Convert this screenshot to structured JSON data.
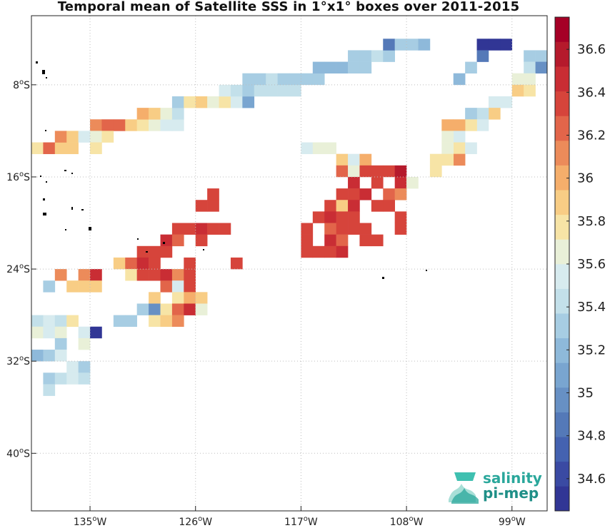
{
  "title": "Temporal mean of Satellite SSS in 1°x1° boxes over 2011-2015",
  "logo": {
    "line1": "salinity",
    "line2": "pi-mep",
    "colors": [
      "#3fc0b0",
      "#2aa79b",
      "#1f8f87"
    ]
  },
  "chart_data": {
    "type": "heatmap",
    "title": "Temporal mean of Satellite SSS in 1°x1° boxes over 2011-2015",
    "x_unit": "degrees longitude",
    "y_unit": "degrees latitude",
    "xlim": [
      -140,
      -96
    ],
    "ylim": [
      -45,
      -2
    ],
    "x_ticks": [
      {
        "value": -135,
        "label": "135°W"
      },
      {
        "value": -126,
        "label": "126°W"
      },
      {
        "value": -117,
        "label": "117°W"
      },
      {
        "value": -108,
        "label": "108°W"
      },
      {
        "value": -99,
        "label": "99°W"
      }
    ],
    "y_ticks": [
      {
        "value": -8,
        "label": "8°S"
      },
      {
        "value": -16,
        "label": "16°S"
      },
      {
        "value": -24,
        "label": "24°S"
      },
      {
        "value": -32,
        "label": "32°S"
      },
      {
        "value": -40,
        "label": "40°S"
      }
    ],
    "grid": true,
    "colorbar": {
      "min": 34.45,
      "max": 36.75,
      "ticks": [
        34.6,
        34.8,
        35.0,
        35.2,
        35.4,
        35.6,
        35.8,
        36.0,
        36.2,
        36.4,
        36.6
      ],
      "tick_labels": [
        "34.6",
        "34.8",
        "35",
        "35.2",
        "35.4",
        "35.6",
        "35.8",
        "36",
        "36.2",
        "36.4",
        "36.6"
      ],
      "colors": [
        "#313695",
        "#3a4aa3",
        "#4462b0",
        "#5479b8",
        "#6790c4",
        "#79a5d0",
        "#8eb9da",
        "#a7cde3",
        "#c3e0ea",
        "#d7ebef",
        "#e9f0d8",
        "#f7e4a6",
        "#f8cd85",
        "#f5ae6b",
        "#ec8b5a",
        "#e2654a",
        "#d6443b",
        "#c92d34",
        "#b51a2c",
        "#a50026"
      ]
    },
    "cells": [
      {
        "lon": -134.5,
        "lat": -11.5,
        "v": 36.1
      },
      {
        "lon": -133.5,
        "lat": -11.5,
        "v": 36.2
      },
      {
        "lon": -132.5,
        "lat": -11.5,
        "v": 36.2
      },
      {
        "lon": -131.5,
        "lat": -11.5,
        "v": 35.85
      },
      {
        "lon": -130.5,
        "lat": -11.5,
        "v": 35.75
      },
      {
        "lon": -129.5,
        "lat": -11.5,
        "v": 35.6
      },
      {
        "lon": -128.5,
        "lat": -11.5,
        "v": 35.55
      },
      {
        "lon": -127.5,
        "lat": -11.5,
        "v": 35.5
      },
      {
        "lon": -130.5,
        "lat": -10.5,
        "v": 36.0
      },
      {
        "lon": -129.5,
        "lat": -10.5,
        "v": 35.85
      },
      {
        "lon": -128.5,
        "lat": -10.5,
        "v": 35.6
      },
      {
        "lon": -127.5,
        "lat": -10.5,
        "v": 35.45
      },
      {
        "lon": -127.5,
        "lat": -9.5,
        "v": 35.3
      },
      {
        "lon": -126.5,
        "lat": -9.5,
        "v": 35.8
      },
      {
        "lon": -125.5,
        "lat": -9.5,
        "v": 35.85
      },
      {
        "lon": -124.5,
        "lat": -9.5,
        "v": 35.7
      },
      {
        "lon": -123.5,
        "lat": -9.5,
        "v": 35.75
      },
      {
        "lon": -122.5,
        "lat": -9.5,
        "v": 35.5
      },
      {
        "lon": -121.5,
        "lat": -9.5,
        "v": 35.1
      },
      {
        "lon": -123.5,
        "lat": -8.5,
        "v": 35.55
      },
      {
        "lon": -122.5,
        "lat": -8.5,
        "v": 35.45
      },
      {
        "lon": -121.5,
        "lat": -8.5,
        "v": 35.3
      },
      {
        "lon": -120.5,
        "lat": -8.5,
        "v": 35.4
      },
      {
        "lon": -119.5,
        "lat": -8.5,
        "v": 35.45
      },
      {
        "lon": -118.5,
        "lat": -8.5,
        "v": 35.45
      },
      {
        "lon": -117.5,
        "lat": -8.5,
        "v": 35.45
      },
      {
        "lon": -121.5,
        "lat": -7.5,
        "v": 35.35
      },
      {
        "lon": -120.5,
        "lat": -7.5,
        "v": 35.3
      },
      {
        "lon": -119.5,
        "lat": -7.5,
        "v": 35.4
      },
      {
        "lon": -118.5,
        "lat": -7.5,
        "v": 35.35
      },
      {
        "lon": -117.5,
        "lat": -7.5,
        "v": 35.3
      },
      {
        "lon": -116.5,
        "lat": -7.5,
        "v": 35.35
      },
      {
        "lon": -115.5,
        "lat": -7.5,
        "v": 35.3
      },
      {
        "lon": -115.5,
        "lat": -6.5,
        "v": 35.2
      },
      {
        "lon": -114.5,
        "lat": -6.5,
        "v": 35.25
      },
      {
        "lon": -113.5,
        "lat": -6.5,
        "v": 35.25
      },
      {
        "lon": -112.5,
        "lat": -6.5,
        "v": 35.3
      },
      {
        "lon": -111.5,
        "lat": -6.5,
        "v": 35.3
      },
      {
        "lon": -112.5,
        "lat": -5.5,
        "v": 35.35
      },
      {
        "lon": -111.5,
        "lat": -5.5,
        "v": 35.3
      },
      {
        "lon": -110.5,
        "lat": -5.5,
        "v": 35.4
      },
      {
        "lon": -109.5,
        "lat": -5.5,
        "v": 35.35
      },
      {
        "lon": -109.5,
        "lat": -4.5,
        "v": 34.8
      },
      {
        "lon": -108.5,
        "lat": -4.5,
        "v": 35.3
      },
      {
        "lon": -107.5,
        "lat": -4.5,
        "v": 35.35
      },
      {
        "lon": -106.5,
        "lat": -4.5,
        "v": 35.25
      },
      {
        "lon": -101.5,
        "lat": -4.5,
        "v": 34.55
      },
      {
        "lon": -100.5,
        "lat": -4.5,
        "v": 34.55
      },
      {
        "lon": -99.5,
        "lat": -4.5,
        "v": 34.5
      },
      {
        "lon": -101.5,
        "lat": -5.5,
        "v": 34.8
      },
      {
        "lon": -102.5,
        "lat": -6.5,
        "v": 35.3
      },
      {
        "lon": -103.5,
        "lat": -7.5,
        "v": 35.25
      },
      {
        "lon": -97.5,
        "lat": -5.5,
        "v": 35.3
      },
      {
        "lon": -96.5,
        "lat": -5.5,
        "v": 35.3
      },
      {
        "lon": -97.5,
        "lat": -6.5,
        "v": 35.4
      },
      {
        "lon": -96.5,
        "lat": -6.5,
        "v": 34.95
      },
      {
        "lon": -98.5,
        "lat": -7.5,
        "v": 35.7
      },
      {
        "lon": -97.5,
        "lat": -7.5,
        "v": 35.7
      },
      {
        "lon": -98.5,
        "lat": -8.5,
        "v": 35.85
      },
      {
        "lon": -97.5,
        "lat": -8.5,
        "v": 35.8
      },
      {
        "lon": -99.5,
        "lat": -9.5,
        "v": 35.55
      },
      {
        "lon": -100.5,
        "lat": -9.5,
        "v": 35.55
      },
      {
        "lon": -100.5,
        "lat": -10.5,
        "v": 35.85
      },
      {
        "lon": -101.5,
        "lat": -10.5,
        "v": 35.4
      },
      {
        "lon": -102.5,
        "lat": -10.5,
        "v": 35.3
      },
      {
        "lon": -101.5,
        "lat": -11.5,
        "v": 35.5
      },
      {
        "lon": -102.5,
        "lat": -11.5,
        "v": 35.8
      },
      {
        "lon": -103.5,
        "lat": -11.5,
        "v": 36.0
      },
      {
        "lon": -104.5,
        "lat": -11.5,
        "v": 36.05
      },
      {
        "lon": -103.5,
        "lat": -12.5,
        "v": 35.5
      },
      {
        "lon": -104.5,
        "lat": -12.5,
        "v": 35.7
      },
      {
        "lon": -103.5,
        "lat": -13.5,
        "v": 35.8
      },
      {
        "lon": -102.5,
        "lat": -13.5,
        "v": 35.55
      },
      {
        "lon": -104.5,
        "lat": -13.5,
        "v": 35.7
      },
      {
        "lon": -103.5,
        "lat": -14.5,
        "v": 36.1
      },
      {
        "lon": -104.5,
        "lat": -14.5,
        "v": 35.8
      },
      {
        "lon": -105.5,
        "lat": -14.5,
        "v": 35.8
      },
      {
        "lon": -105.5,
        "lat": -15.5,
        "v": 35.8
      },
      {
        "lon": -139.5,
        "lat": -13.5,
        "v": 35.8
      },
      {
        "lon": -138.5,
        "lat": -13.5,
        "v": 36.2
      },
      {
        "lon": -137.5,
        "lat": -13.5,
        "v": 35.85
      },
      {
        "lon": -136.5,
        "lat": -13.5,
        "v": 35.9
      },
      {
        "lon": -137.5,
        "lat": -12.5,
        "v": 36.1
      },
      {
        "lon": -136.5,
        "lat": -12.5,
        "v": 35.85
      },
      {
        "lon": -135.5,
        "lat": -12.5,
        "v": 35.55
      },
      {
        "lon": -134.5,
        "lat": -12.5,
        "v": 35.7
      },
      {
        "lon": -133.5,
        "lat": -12.5,
        "v": 35.8
      },
      {
        "lon": -134.5,
        "lat": -13.5,
        "v": 35.75
      },
      {
        "lon": -116.5,
        "lat": -13.5,
        "v": 35.55
      },
      {
        "lon": -115.5,
        "lat": -13.5,
        "v": 35.6
      },
      {
        "lon": -114.5,
        "lat": -13.5,
        "v": 35.65
      },
      {
        "lon": -113.5,
        "lat": -14.5,
        "v": 35.9
      },
      {
        "lon": -112.5,
        "lat": -14.5,
        "v": 35.5
      },
      {
        "lon": -111.5,
        "lat": -14.5,
        "v": 36.05
      },
      {
        "lon": -113.5,
        "lat": -15.5,
        "v": 36.2
      },
      {
        "lon": -112.5,
        "lat": -15.5,
        "v": 35.7
      },
      {
        "lon": -111.5,
        "lat": -15.5,
        "v": 36.3
      },
      {
        "lon": -110.5,
        "lat": -15.5,
        "v": 36.3
      },
      {
        "lon": -109.5,
        "lat": -15.5,
        "v": 36.3
      },
      {
        "lon": -108.5,
        "lat": -15.5,
        "v": 36.6
      },
      {
        "lon": -112.5,
        "lat": -16.5,
        "v": 36.5
      },
      {
        "lon": -110.5,
        "lat": -16.5,
        "v": 36.4
      },
      {
        "lon": -108.5,
        "lat": -16.5,
        "v": 36.45
      },
      {
        "lon": -107.5,
        "lat": -16.5,
        "v": 35.6
      },
      {
        "lon": -113.5,
        "lat": -17.5,
        "v": 36.4
      },
      {
        "lon": -112.5,
        "lat": -17.5,
        "v": 36.3
      },
      {
        "lon": -111.5,
        "lat": -17.5,
        "v": 36.45
      },
      {
        "lon": -109.5,
        "lat": -17.5,
        "v": 36.2
      },
      {
        "lon": -108.5,
        "lat": -17.5,
        "v": 36.1
      },
      {
        "lon": -114.5,
        "lat": -18.5,
        "v": 36.4
      },
      {
        "lon": -113.5,
        "lat": -18.5,
        "v": 35.85
      },
      {
        "lon": -112.5,
        "lat": -18.5,
        "v": 36.45
      },
      {
        "lon": -110.5,
        "lat": -18.5,
        "v": 36.3
      },
      {
        "lon": -109.5,
        "lat": -18.5,
        "v": 36.3
      },
      {
        "lon": -115.5,
        "lat": -19.5,
        "v": 36.3
      },
      {
        "lon": -114.5,
        "lat": -19.5,
        "v": 36.45
      },
      {
        "lon": -113.5,
        "lat": -19.5,
        "v": 36.4
      },
      {
        "lon": -112.5,
        "lat": -19.5,
        "v": 36.35
      },
      {
        "lon": -108.5,
        "lat": -19.5,
        "v": 36.3
      },
      {
        "lon": -116.5,
        "lat": -20.5,
        "v": 36.3
      },
      {
        "lon": -114.5,
        "lat": -20.5,
        "v": 36.2
      },
      {
        "lon": -113.5,
        "lat": -20.5,
        "v": 36.3
      },
      {
        "lon": -112.5,
        "lat": -20.5,
        "v": 36.3
      },
      {
        "lon": -111.5,
        "lat": -20.5,
        "v": 36.4
      },
      {
        "lon": -108.5,
        "lat": -20.5,
        "v": 36.3
      },
      {
        "lon": -116.5,
        "lat": -21.5,
        "v": 36.35
      },
      {
        "lon": -114.5,
        "lat": -21.5,
        "v": 36.5
      },
      {
        "lon": -113.5,
        "lat": -21.5,
        "v": 36.2
      },
      {
        "lon": -111.5,
        "lat": -21.5,
        "v": 36.4
      },
      {
        "lon": -110.5,
        "lat": -21.5,
        "v": 36.35
      },
      {
        "lon": -116.5,
        "lat": -22.5,
        "v": 36.3
      },
      {
        "lon": -115.5,
        "lat": -22.5,
        "v": 36.4
      },
      {
        "lon": -114.5,
        "lat": -22.5,
        "v": 36.35
      },
      {
        "lon": -113.5,
        "lat": -22.5,
        "v": 36.5
      },
      {
        "lon": -125.5,
        "lat": -18.5,
        "v": 36.3
      },
      {
        "lon": -124.5,
        "lat": -18.5,
        "v": 36.3
      },
      {
        "lon": -124.5,
        "lat": -17.5,
        "v": 36.3
      },
      {
        "lon": -127.5,
        "lat": -20.5,
        "v": 36.35
      },
      {
        "lon": -126.5,
        "lat": -20.5,
        "v": 36.4
      },
      {
        "lon": -125.5,
        "lat": -20.5,
        "v": 36.45
      },
      {
        "lon": -124.5,
        "lat": -20.5,
        "v": 36.4
      },
      {
        "lon": -123.5,
        "lat": -20.5,
        "v": 36.35
      },
      {
        "lon": -128.5,
        "lat": -21.5,
        "v": 36.5
      },
      {
        "lon": -127.5,
        "lat": -21.5,
        "v": 36.2
      },
      {
        "lon": -125.5,
        "lat": -21.5,
        "v": 36.3
      },
      {
        "lon": -130.5,
        "lat": -22.5,
        "v": 36.3
      },
      {
        "lon": -129.5,
        "lat": -22.5,
        "v": 36.4
      },
      {
        "lon": -128.5,
        "lat": -22.5,
        "v": 36.4
      },
      {
        "lon": -132.5,
        "lat": -23.5,
        "v": 35.85
      },
      {
        "lon": -131.5,
        "lat": -23.5,
        "v": 36.2
      },
      {
        "lon": -130.5,
        "lat": -23.5,
        "v": 36.45
      },
      {
        "lon": -129.5,
        "lat": -23.5,
        "v": 36.3
      },
      {
        "lon": -126.5,
        "lat": -23.5,
        "v": 36.4
      },
      {
        "lon": -122.5,
        "lat": -23.5,
        "v": 36.35
      },
      {
        "lon": -131.5,
        "lat": -24.5,
        "v": 35.8
      },
      {
        "lon": -130.5,
        "lat": -24.5,
        "v": 36.35
      },
      {
        "lon": -129.5,
        "lat": -24.5,
        "v": 36.35
      },
      {
        "lon": -128.5,
        "lat": -24.5,
        "v": 36.5
      },
      {
        "lon": -127.5,
        "lat": -24.5,
        "v": 36.1
      },
      {
        "lon": -126.5,
        "lat": -24.5,
        "v": 36.3
      },
      {
        "lon": -137.5,
        "lat": -24.5,
        "v": 36.1
      },
      {
        "lon": -135.5,
        "lat": -24.5,
        "v": 36.1
      },
      {
        "lon": -134.5,
        "lat": -24.5,
        "v": 36.45
      },
      {
        "lon": -138.5,
        "lat": -25.5,
        "v": 35.3
      },
      {
        "lon": -136.5,
        "lat": -25.5,
        "v": 35.9
      },
      {
        "lon": -135.5,
        "lat": -25.5,
        "v": 35.85
      },
      {
        "lon": -134.5,
        "lat": -25.5,
        "v": 35.85
      },
      {
        "lon": -128.5,
        "lat": -25.5,
        "v": 36.2
      },
      {
        "lon": -127.5,
        "lat": -25.5,
        "v": 35.5
      },
      {
        "lon": -126.5,
        "lat": -25.5,
        "v": 36.35
      },
      {
        "lon": -129.5,
        "lat": -26.5,
        "v": 35.9
      },
      {
        "lon": -127.5,
        "lat": -26.5,
        "v": 35.8
      },
      {
        "lon": -126.5,
        "lat": -26.5,
        "v": 36.0
      },
      {
        "lon": -125.5,
        "lat": -26.5,
        "v": 35.85
      },
      {
        "lon": -130.5,
        "lat": -27.5,
        "v": 35.3
      },
      {
        "lon": -129.5,
        "lat": -27.5,
        "v": 35.0
      },
      {
        "lon": -128.5,
        "lat": -27.5,
        "v": 35.8
      },
      {
        "lon": -127.5,
        "lat": -27.5,
        "v": 36.2
      },
      {
        "lon": -126.5,
        "lat": -27.5,
        "v": 36.5
      },
      {
        "lon": -125.5,
        "lat": -27.5,
        "v": 35.7
      },
      {
        "lon": -132.5,
        "lat": -28.5,
        "v": 35.35
      },
      {
        "lon": -131.5,
        "lat": -28.5,
        "v": 35.35
      },
      {
        "lon": -129.5,
        "lat": -28.5,
        "v": 35.8
      },
      {
        "lon": -128.5,
        "lat": -28.5,
        "v": 35.85
      },
      {
        "lon": -127.5,
        "lat": -28.5,
        "v": 36.1
      },
      {
        "lon": -139.5,
        "lat": -28.5,
        "v": 35.45
      },
      {
        "lon": -138.5,
        "lat": -28.5,
        "v": 35.55
      },
      {
        "lon": -137.5,
        "lat": -28.5,
        "v": 35.45
      },
      {
        "lon": -136.5,
        "lat": -28.5,
        "v": 35.8
      },
      {
        "lon": -139.5,
        "lat": -29.5,
        "v": 35.7
      },
      {
        "lon": -138.5,
        "lat": -29.5,
        "v": 35.55
      },
      {
        "lon": -137.5,
        "lat": -29.5,
        "v": 35.6
      },
      {
        "lon": -135.5,
        "lat": -29.5,
        "v": 35.5
      },
      {
        "lon": -134.5,
        "lat": -29.5,
        "v": 34.55
      },
      {
        "lon": -137.5,
        "lat": -30.5,
        "v": 35.3
      },
      {
        "lon": -135.5,
        "lat": -30.5,
        "v": 35.7
      },
      {
        "lon": -139.5,
        "lat": -31.5,
        "v": 35.25
      },
      {
        "lon": -138.5,
        "lat": -31.5,
        "v": 35.3
      },
      {
        "lon": -137.5,
        "lat": -31.5,
        "v": 35.5
      },
      {
        "lon": -136.5,
        "lat": -32.5,
        "v": 35.5
      },
      {
        "lon": -135.5,
        "lat": -32.5,
        "v": 35.3
      },
      {
        "lon": -138.5,
        "lat": -33.5,
        "v": 35.3
      },
      {
        "lon": -137.5,
        "lat": -33.5,
        "v": 35.4
      },
      {
        "lon": -136.5,
        "lat": -33.5,
        "v": 35.5
      },
      {
        "lon": -135.5,
        "lat": -33.5,
        "v": 35.4
      },
      {
        "lon": -138.5,
        "lat": -34.5,
        "v": 35.4
      }
    ]
  }
}
